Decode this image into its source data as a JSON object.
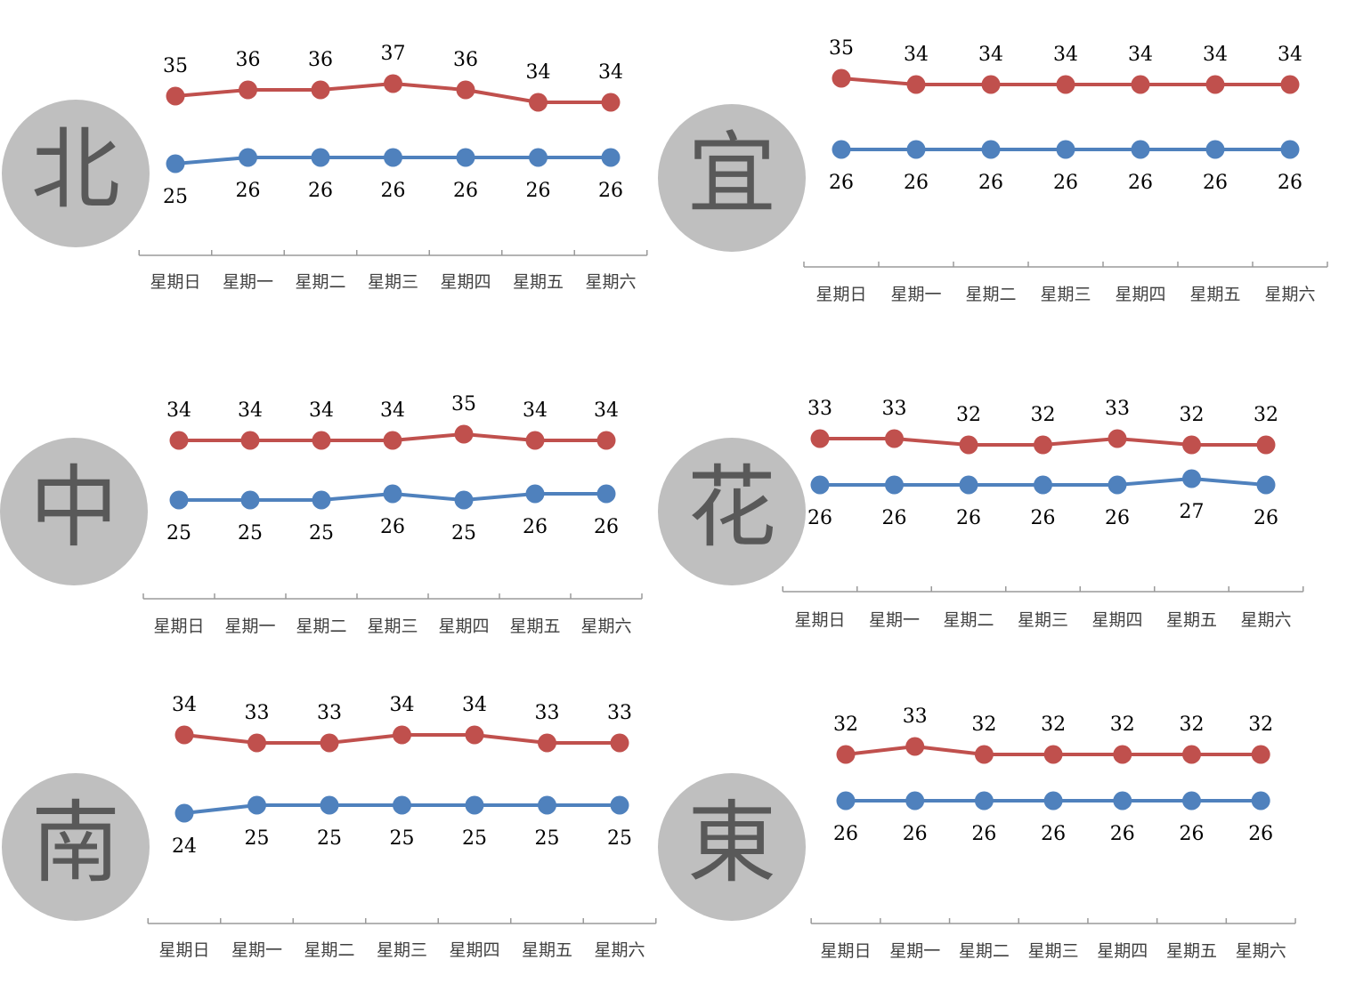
{
  "categories": [
    "星期日",
    "星期一",
    "星期二",
    "星期三",
    "星期四",
    "星期五",
    "星期六"
  ],
  "colors": {
    "high": "#c0504d",
    "low": "#4f81bd",
    "badge": "#bfbfbf",
    "badge_text": "#595959",
    "axis": "#9a9a9a",
    "label": "#000000",
    "tick_label": "#404040"
  },
  "chart_data": [
    {
      "type": "line",
      "region": "北",
      "categories": [
        "星期日",
        "星期一",
        "星期二",
        "星期三",
        "星期四",
        "星期五",
        "星期六"
      ],
      "series": [
        {
          "key": "high",
          "values": [
            35,
            36,
            36,
            37,
            36,
            34,
            34
          ]
        },
        {
          "key": "low",
          "values": [
            25,
            26,
            26,
            26,
            26,
            26,
            26
          ]
        }
      ]
    },
    {
      "type": "line",
      "region": "宜",
      "categories": [
        "星期日",
        "星期一",
        "星期二",
        "星期三",
        "星期四",
        "星期五",
        "星期六"
      ],
      "series": [
        {
          "key": "high",
          "values": [
            35,
            34,
            34,
            34,
            34,
            34,
            34
          ]
        },
        {
          "key": "low",
          "values": [
            26,
            26,
            26,
            26,
            26,
            26,
            26
          ]
        }
      ]
    },
    {
      "type": "line",
      "region": "中",
      "categories": [
        "星期日",
        "星期一",
        "星期二",
        "星期三",
        "星期四",
        "星期五",
        "星期六"
      ],
      "series": [
        {
          "key": "high",
          "values": [
            34,
            34,
            34,
            34,
            35,
            34,
            34
          ]
        },
        {
          "key": "low",
          "values": [
            25,
            25,
            25,
            26,
            25,
            26,
            26
          ]
        }
      ]
    },
    {
      "type": "line",
      "region": "花",
      "categories": [
        "星期日",
        "星期一",
        "星期二",
        "星期三",
        "星期四",
        "星期五",
        "星期六"
      ],
      "series": [
        {
          "key": "high",
          "values": [
            33,
            33,
            32,
            32,
            33,
            32,
            32
          ]
        },
        {
          "key": "low",
          "values": [
            26,
            26,
            26,
            26,
            26,
            27,
            26
          ]
        }
      ]
    },
    {
      "type": "line",
      "region": "南",
      "categories": [
        "星期日",
        "星期一",
        "星期二",
        "星期三",
        "星期四",
        "星期五",
        "星期六"
      ],
      "series": [
        {
          "key": "high",
          "values": [
            34,
            33,
            33,
            34,
            34,
            33,
            33
          ]
        },
        {
          "key": "low",
          "values": [
            24,
            25,
            25,
            25,
            25,
            25,
            25
          ]
        }
      ]
    },
    {
      "type": "line",
      "region": "東",
      "categories": [
        "星期日",
        "星期一",
        "星期二",
        "星期三",
        "星期四",
        "星期五",
        "星期六"
      ],
      "series": [
        {
          "key": "high",
          "values": [
            32,
            33,
            32,
            32,
            32,
            32,
            32
          ]
        },
        {
          "key": "low",
          "values": [
            26,
            26,
            26,
            26,
            26,
            26,
            26
          ]
        }
      ]
    }
  ]
}
